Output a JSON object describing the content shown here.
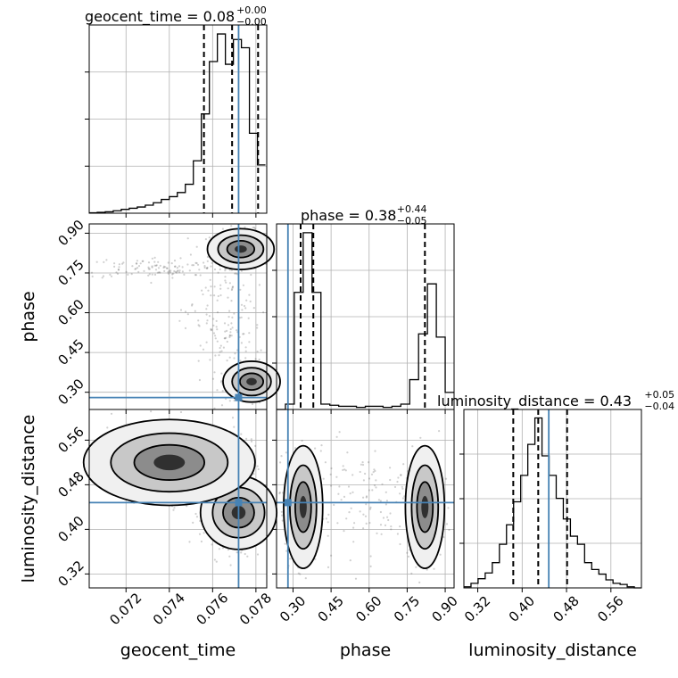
{
  "chart_data": {
    "type": "corner",
    "parameters": [
      {
        "name": "geocent_time",
        "xlabel": "geocent_time",
        "title": {
          "base": "geocent_time = 0.08",
          "plus": "+0.00",
          "minus": "−0.00"
        },
        "ticks": [
          0.072,
          0.074,
          0.076,
          0.078
        ],
        "tick_labels": [
          "0.072",
          "0.074",
          "0.076",
          "0.078"
        ],
        "range": [
          0.0703,
          0.0785
        ],
        "truth": 0.0772,
        "quantiles": [
          0.0756,
          0.0769,
          0.0781
        ],
        "hist": {
          "edges_start": 0.0703,
          "edges_step": 0.00037,
          "counts": [
            0.3,
            0.6,
            1,
            1.8,
            2.8,
            3.6,
            4.5,
            5.8,
            7.6,
            10,
            12,
            15,
            21,
            38,
            72,
            110,
            130,
            108,
            126,
            120,
            58,
            35
          ]
        }
      },
      {
        "name": "phase",
        "xlabel": "phase",
        "ylabel": "phase",
        "title": {
          "base": "phase = 0.38",
          "plus": "+0.44",
          "minus": "−0.05"
        },
        "ticks": [
          0.3,
          0.45,
          0.6,
          0.75,
          0.9
        ],
        "tick_labels": [
          "0.30",
          "0.45",
          "0.60",
          "0.75",
          "0.90"
        ],
        "range": [
          0.235,
          0.935
        ],
        "truth": 0.28,
        "quantiles": [
          0.33,
          0.38,
          0.82
        ],
        "hist": {
          "edges_start": 0.235,
          "edges_step": 0.035,
          "counts": [
            0,
            5,
            110,
            166,
            110,
            5,
            4,
            3,
            3,
            2,
            3,
            3,
            2,
            3,
            5,
            28,
            71,
            118,
            68,
            16
          ]
        }
      },
      {
        "name": "luminosity_distance",
        "xlabel": "luminosity_distance",
        "ylabel": "luminosity_distance",
        "title": {
          "base": "luminosity_distance = 0.43",
          "plus": "+0.05",
          "minus": "−0.04"
        },
        "ticks": [
          0.32,
          0.4,
          0.48,
          0.56
        ],
        "tick_labels": [
          "0.32",
          "0.40",
          "0.48",
          "0.56"
        ],
        "y_tick_labels": [
          "0.32",
          "0.40",
          "0.48",
          "0.56"
        ],
        "range": [
          0.295,
          0.615
        ],
        "truth": 0.448,
        "quantiles": [
          0.384,
          0.429,
          0.481
        ],
        "hist": {
          "edges_start": 0.295,
          "edges_step": 0.0128,
          "counts": [
            1,
            4,
            8,
            13,
            22,
            38,
            55,
            75,
            98,
            125,
            148,
            115,
            98,
            78,
            60,
            45,
            38,
            22,
            16,
            12,
            7,
            4,
            3,
            1,
            0
          ]
        }
      }
    ],
    "truths": {
      "geocent_time": 0.0772,
      "phase": 0.28,
      "luminosity_distance": 0.448
    },
    "colors": {
      "truth": "#4682b4",
      "hist": "#000000",
      "grid": "#b0b0b0"
    }
  }
}
